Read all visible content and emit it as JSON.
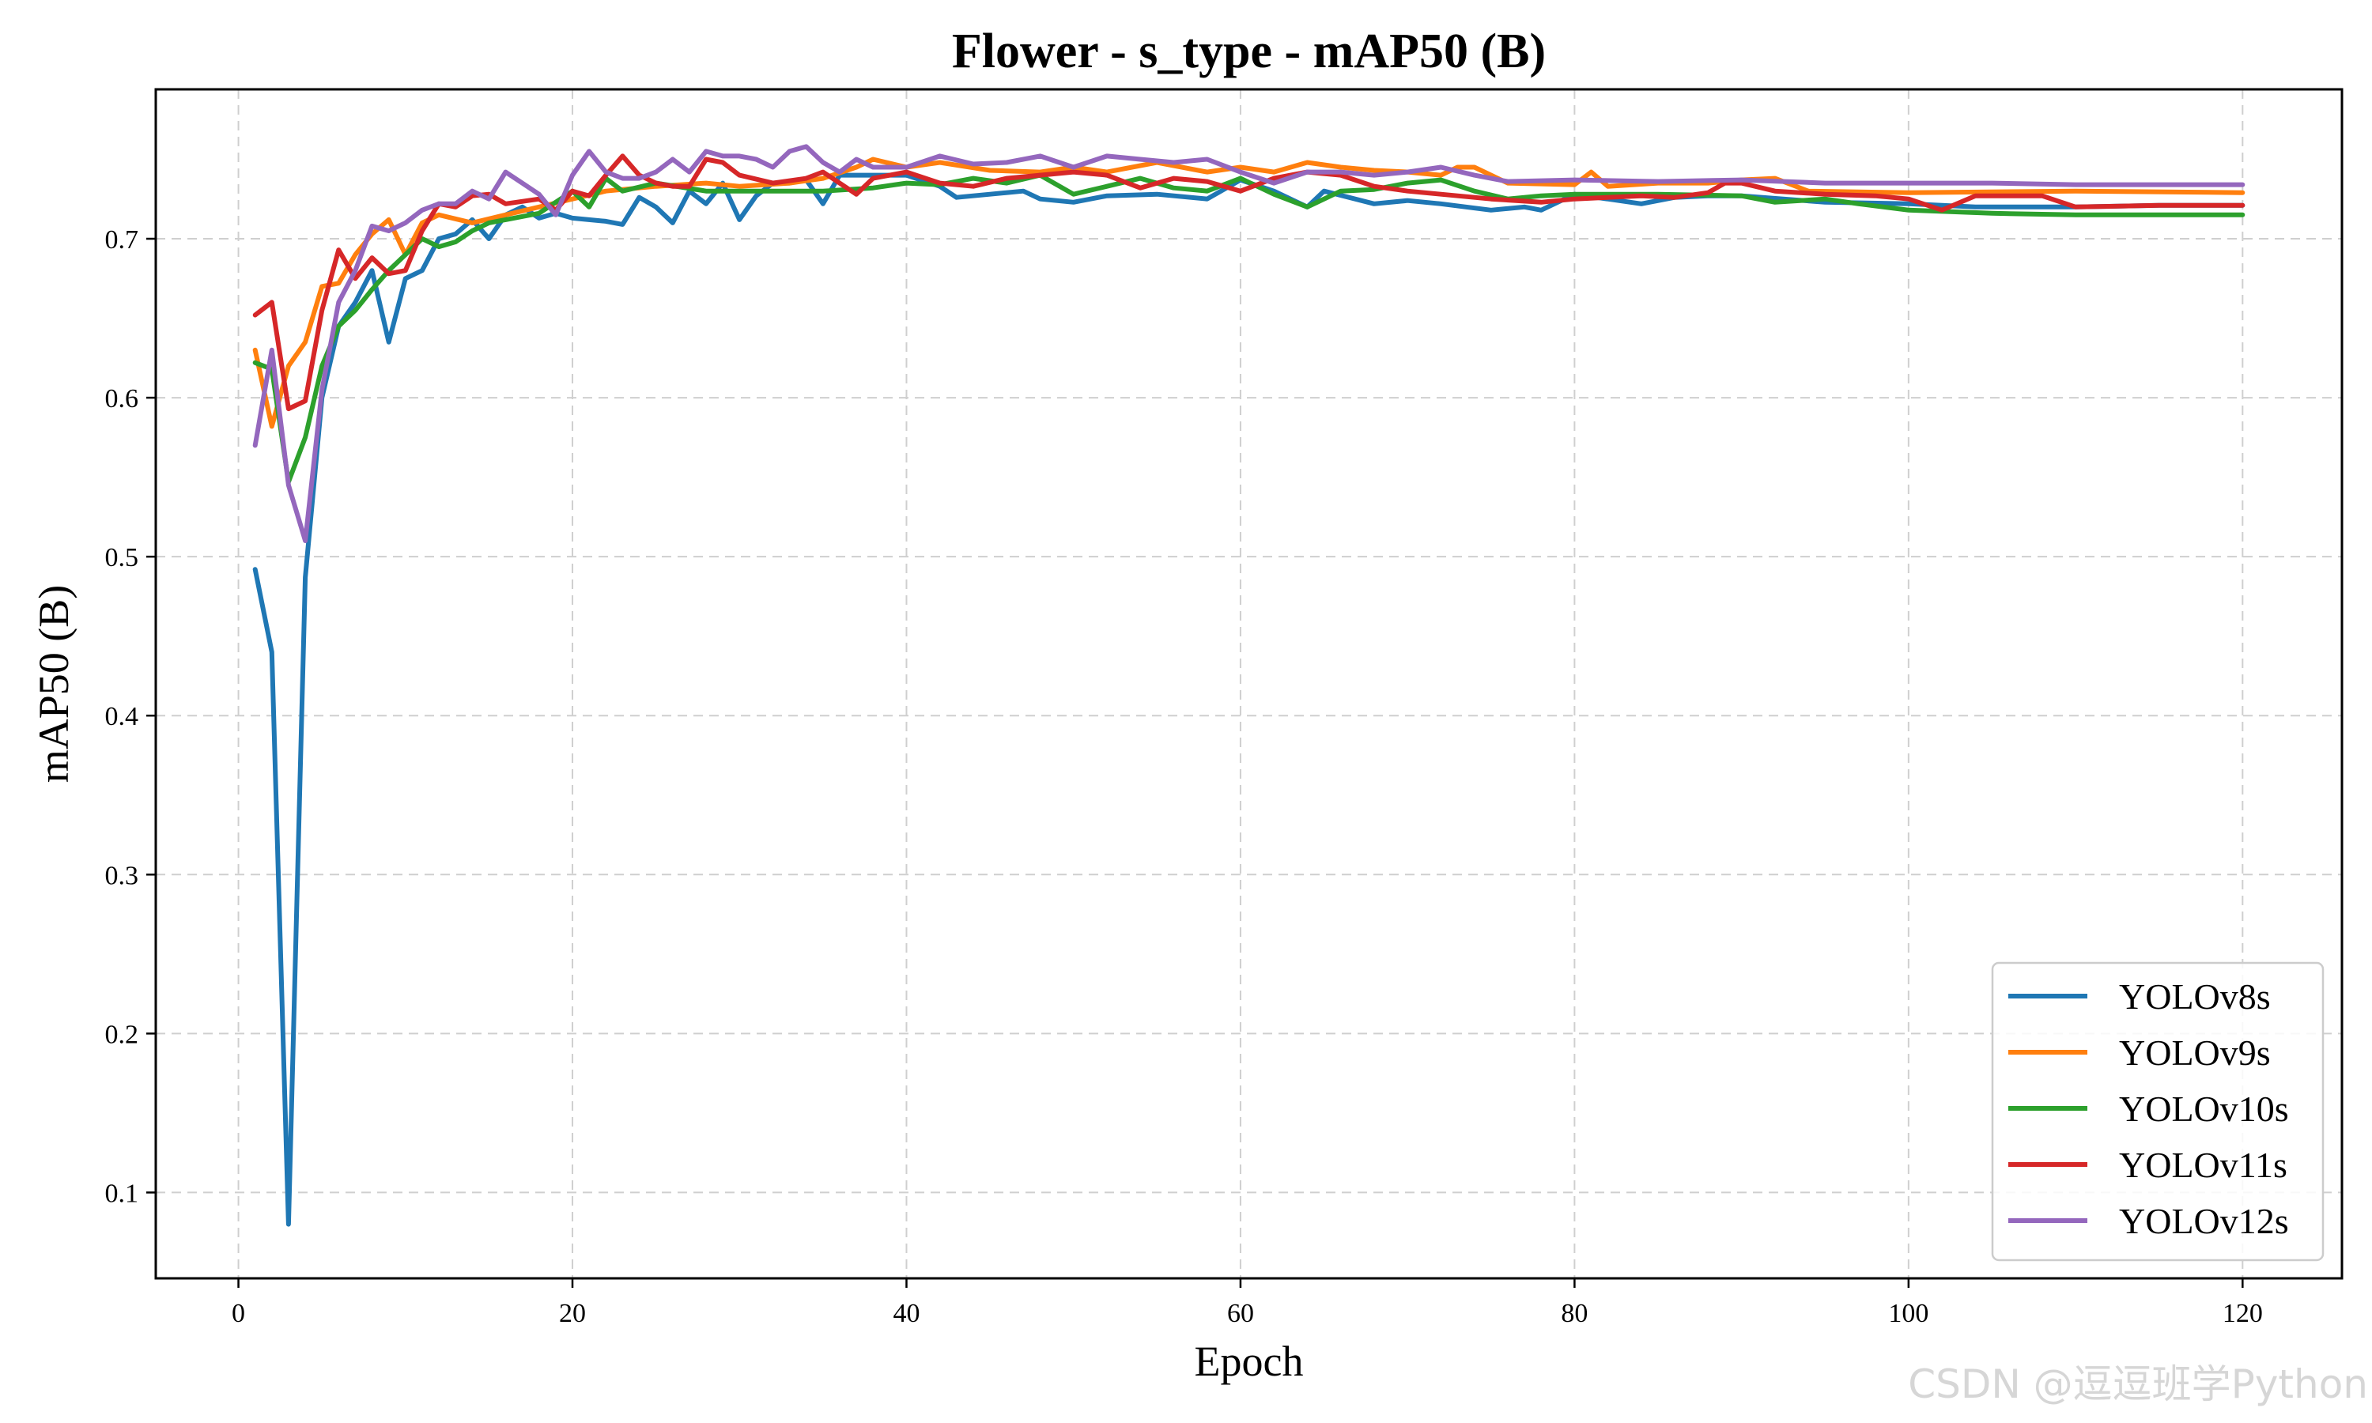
{
  "chart_data": {
    "type": "line",
    "title": "Flower - s_type - mAP50 (B)",
    "xlabel": "Epoch",
    "ylabel": "mAP50 (B)",
    "xlim": [
      -4.95,
      125.95
    ],
    "ylim": [
      0.046,
      0.794
    ],
    "xticks": [
      0,
      20,
      40,
      60,
      80,
      100,
      120
    ],
    "yticks": [
      0.1,
      0.2,
      0.3,
      0.4,
      0.5,
      0.6,
      0.7
    ],
    "grid": true,
    "legend_position": "lower-right",
    "series": [
      {
        "name": "YOLOv8s",
        "color": "#1f77b4",
        "anchors": [
          [
            1,
            0.492
          ],
          [
            2,
            0.44
          ],
          [
            3,
            0.08
          ],
          [
            4,
            0.487
          ],
          [
            5,
            0.6
          ],
          [
            6,
            0.645
          ],
          [
            7,
            0.66
          ],
          [
            8,
            0.68
          ],
          [
            9,
            0.635
          ],
          [
            10,
            0.675
          ],
          [
            11,
            0.68
          ],
          [
            12,
            0.7
          ],
          [
            13,
            0.703
          ],
          [
            14,
            0.712
          ],
          [
            15,
            0.7
          ],
          [
            16,
            0.715
          ],
          [
            17,
            0.72
          ],
          [
            18,
            0.713
          ],
          [
            19,
            0.716
          ],
          [
            20,
            0.713
          ],
          [
            22,
            0.711
          ],
          [
            23,
            0.709
          ],
          [
            24,
            0.726
          ],
          [
            25,
            0.72
          ],
          [
            26,
            0.71
          ],
          [
            27,
            0.73
          ],
          [
            28,
            0.722
          ],
          [
            29,
            0.735
          ],
          [
            30,
            0.712
          ],
          [
            31,
            0.727
          ],
          [
            32,
            0.735
          ],
          [
            33,
            0.735
          ],
          [
            34,
            0.737
          ],
          [
            35,
            0.722
          ],
          [
            36,
            0.74
          ],
          [
            40,
            0.74
          ],
          [
            42,
            0.733
          ],
          [
            43,
            0.726
          ],
          [
            45,
            0.728
          ],
          [
            47,
            0.73
          ],
          [
            48,
            0.725
          ],
          [
            50,
            0.723
          ],
          [
            52,
            0.727
          ],
          [
            55,
            0.728
          ],
          [
            58,
            0.725
          ],
          [
            60,
            0.737
          ],
          [
            62,
            0.73
          ],
          [
            64,
            0.72
          ],
          [
            65,
            0.73
          ],
          [
            68,
            0.722
          ],
          [
            70,
            0.724
          ],
          [
            72,
            0.722
          ],
          [
            75,
            0.718
          ],
          [
            77,
            0.72
          ],
          [
            78,
            0.718
          ],
          [
            80,
            0.728
          ],
          [
            84,
            0.722
          ],
          [
            86,
            0.726
          ],
          [
            88,
            0.727
          ],
          [
            90,
            0.727
          ],
          [
            95,
            0.723
          ],
          [
            100,
            0.722
          ],
          [
            104,
            0.72
          ],
          [
            110,
            0.72
          ],
          [
            115,
            0.721
          ],
          [
            120,
            0.721
          ]
        ]
      },
      {
        "name": "YOLOv9s",
        "color": "#ff7f0e",
        "anchors": [
          [
            1,
            0.63
          ],
          [
            2,
            0.582
          ],
          [
            3,
            0.62
          ],
          [
            4,
            0.635
          ],
          [
            5,
            0.67
          ],
          [
            6,
            0.672
          ],
          [
            7,
            0.69
          ],
          [
            8,
            0.703
          ],
          [
            9,
            0.712
          ],
          [
            10,
            0.69
          ],
          [
            11,
            0.71
          ],
          [
            12,
            0.715
          ],
          [
            14,
            0.71
          ],
          [
            16,
            0.715
          ],
          [
            18,
            0.72
          ],
          [
            20,
            0.725
          ],
          [
            22,
            0.73
          ],
          [
            25,
            0.733
          ],
          [
            28,
            0.735
          ],
          [
            30,
            0.733
          ],
          [
            33,
            0.735
          ],
          [
            35,
            0.738
          ],
          [
            37,
            0.745
          ],
          [
            38,
            0.75
          ],
          [
            40,
            0.745
          ],
          [
            42,
            0.748
          ],
          [
            45,
            0.743
          ],
          [
            48,
            0.742
          ],
          [
            50,
            0.745
          ],
          [
            52,
            0.742
          ],
          [
            55,
            0.748
          ],
          [
            58,
            0.742
          ],
          [
            60,
            0.745
          ],
          [
            62,
            0.742
          ],
          [
            64,
            0.748
          ],
          [
            66,
            0.745
          ],
          [
            68,
            0.743
          ],
          [
            70,
            0.742
          ],
          [
            72,
            0.74
          ],
          [
            73,
            0.745
          ],
          [
            74,
            0.745
          ],
          [
            76,
            0.735
          ],
          [
            80,
            0.734
          ],
          [
            81,
            0.742
          ],
          [
            82,
            0.733
          ],
          [
            85,
            0.735
          ],
          [
            88,
            0.735
          ],
          [
            90,
            0.737
          ],
          [
            92,
            0.738
          ],
          [
            94,
            0.73
          ],
          [
            100,
            0.729
          ],
          [
            110,
            0.73
          ],
          [
            120,
            0.729
          ]
        ]
      },
      {
        "name": "YOLOv10s",
        "color": "#2ca02c",
        "anchors": [
          [
            1,
            0.622
          ],
          [
            2,
            0.618
          ],
          [
            3,
            0.547
          ],
          [
            4,
            0.575
          ],
          [
            5,
            0.62
          ],
          [
            6,
            0.645
          ],
          [
            7,
            0.655
          ],
          [
            8,
            0.668
          ],
          [
            9,
            0.68
          ],
          [
            10,
            0.69
          ],
          [
            11,
            0.7
          ],
          [
            12,
            0.695
          ],
          [
            13,
            0.698
          ],
          [
            14,
            0.705
          ],
          [
            15,
            0.71
          ],
          [
            16,
            0.712
          ],
          [
            18,
            0.716
          ],
          [
            20,
            0.73
          ],
          [
            21,
            0.72
          ],
          [
            22,
            0.738
          ],
          [
            23,
            0.73
          ],
          [
            25,
            0.735
          ],
          [
            28,
            0.73
          ],
          [
            30,
            0.73
          ],
          [
            32,
            0.73
          ],
          [
            35,
            0.73
          ],
          [
            38,
            0.732
          ],
          [
            40,
            0.735
          ],
          [
            42,
            0.734
          ],
          [
            44,
            0.738
          ],
          [
            46,
            0.735
          ],
          [
            48,
            0.74
          ],
          [
            50,
            0.728
          ],
          [
            52,
            0.733
          ],
          [
            54,
            0.738
          ],
          [
            56,
            0.732
          ],
          [
            58,
            0.73
          ],
          [
            60,
            0.738
          ],
          [
            62,
            0.728
          ],
          [
            64,
            0.72
          ],
          [
            66,
            0.73
          ],
          [
            68,
            0.731
          ],
          [
            70,
            0.735
          ],
          [
            72,
            0.737
          ],
          [
            74,
            0.73
          ],
          [
            76,
            0.725
          ],
          [
            78,
            0.727
          ],
          [
            80,
            0.728
          ],
          [
            85,
            0.728
          ],
          [
            90,
            0.727
          ],
          [
            92,
            0.723
          ],
          [
            95,
            0.725
          ],
          [
            97,
            0.722
          ],
          [
            100,
            0.718
          ],
          [
            105,
            0.716
          ],
          [
            110,
            0.715
          ],
          [
            115,
            0.715
          ],
          [
            120,
            0.715
          ]
        ]
      },
      {
        "name": "YOLOv11s",
        "color": "#d62728",
        "anchors": [
          [
            1,
            0.652
          ],
          [
            2,
            0.66
          ],
          [
            3,
            0.593
          ],
          [
            4,
            0.598
          ],
          [
            5,
            0.655
          ],
          [
            6,
            0.693
          ],
          [
            7,
            0.675
          ],
          [
            8,
            0.688
          ],
          [
            9,
            0.678
          ],
          [
            10,
            0.68
          ],
          [
            11,
            0.705
          ],
          [
            12,
            0.722
          ],
          [
            13,
            0.72
          ],
          [
            14,
            0.727
          ],
          [
            15,
            0.728
          ],
          [
            16,
            0.722
          ],
          [
            18,
            0.725
          ],
          [
            19,
            0.718
          ],
          [
            20,
            0.73
          ],
          [
            21,
            0.727
          ],
          [
            22,
            0.74
          ],
          [
            23,
            0.752
          ],
          [
            24,
            0.74
          ],
          [
            25,
            0.735
          ],
          [
            26,
            0.733
          ],
          [
            27,
            0.733
          ],
          [
            28,
            0.75
          ],
          [
            29,
            0.748
          ],
          [
            30,
            0.74
          ],
          [
            32,
            0.735
          ],
          [
            34,
            0.738
          ],
          [
            35,
            0.742
          ],
          [
            36,
            0.735
          ],
          [
            37,
            0.728
          ],
          [
            38,
            0.738
          ],
          [
            40,
            0.742
          ],
          [
            42,
            0.735
          ],
          [
            44,
            0.733
          ],
          [
            46,
            0.738
          ],
          [
            48,
            0.74
          ],
          [
            50,
            0.742
          ],
          [
            52,
            0.74
          ],
          [
            54,
            0.732
          ],
          [
            56,
            0.738
          ],
          [
            58,
            0.736
          ],
          [
            60,
            0.73
          ],
          [
            62,
            0.738
          ],
          [
            64,
            0.742
          ],
          [
            66,
            0.74
          ],
          [
            68,
            0.733
          ],
          [
            70,
            0.73
          ],
          [
            72,
            0.728
          ],
          [
            75,
            0.725
          ],
          [
            78,
            0.723
          ],
          [
            80,
            0.725
          ],
          [
            84,
            0.727
          ],
          [
            86,
            0.726
          ],
          [
            88,
            0.729
          ],
          [
            89,
            0.735
          ],
          [
            90,
            0.735
          ],
          [
            92,
            0.73
          ],
          [
            95,
            0.728
          ],
          [
            98,
            0.727
          ],
          [
            100,
            0.725
          ],
          [
            102,
            0.718
          ],
          [
            104,
            0.727
          ],
          [
            108,
            0.727
          ],
          [
            110,
            0.72
          ],
          [
            115,
            0.721
          ],
          [
            120,
            0.721
          ]
        ]
      },
      {
        "name": "YOLOv12s",
        "color": "#9467bd",
        "anchors": [
          [
            1,
            0.57
          ],
          [
            2,
            0.63
          ],
          [
            3,
            0.545
          ],
          [
            4,
            0.51
          ],
          [
            5,
            0.605
          ],
          [
            6,
            0.66
          ],
          [
            7,
            0.68
          ],
          [
            8,
            0.708
          ],
          [
            9,
            0.705
          ],
          [
            10,
            0.71
          ],
          [
            11,
            0.718
          ],
          [
            12,
            0.722
          ],
          [
            13,
            0.722
          ],
          [
            14,
            0.73
          ],
          [
            15,
            0.725
          ],
          [
            16,
            0.742
          ],
          [
            17,
            0.735
          ],
          [
            18,
            0.728
          ],
          [
            19,
            0.715
          ],
          [
            20,
            0.74
          ],
          [
            21,
            0.755
          ],
          [
            22,
            0.742
          ],
          [
            23,
            0.738
          ],
          [
            24,
            0.738
          ],
          [
            25,
            0.742
          ],
          [
            26,
            0.75
          ],
          [
            27,
            0.742
          ],
          [
            28,
            0.755
          ],
          [
            29,
            0.752
          ],
          [
            30,
            0.752
          ],
          [
            31,
            0.75
          ],
          [
            32,
            0.745
          ],
          [
            33,
            0.755
          ],
          [
            34,
            0.758
          ],
          [
            35,
            0.748
          ],
          [
            36,
            0.742
          ],
          [
            37,
            0.75
          ],
          [
            38,
            0.745
          ],
          [
            40,
            0.745
          ],
          [
            42,
            0.752
          ],
          [
            44,
            0.747
          ],
          [
            46,
            0.748
          ],
          [
            48,
            0.752
          ],
          [
            50,
            0.745
          ],
          [
            52,
            0.752
          ],
          [
            54,
            0.75
          ],
          [
            56,
            0.748
          ],
          [
            58,
            0.75
          ],
          [
            60,
            0.742
          ],
          [
            62,
            0.735
          ],
          [
            64,
            0.742
          ],
          [
            66,
            0.742
          ],
          [
            68,
            0.74
          ],
          [
            70,
            0.742
          ],
          [
            72,
            0.745
          ],
          [
            74,
            0.74
          ],
          [
            76,
            0.736
          ],
          [
            80,
            0.737
          ],
          [
            85,
            0.736
          ],
          [
            90,
            0.737
          ],
          [
            95,
            0.735
          ],
          [
            100,
            0.735
          ],
          [
            105,
            0.735
          ],
          [
            110,
            0.734
          ],
          [
            115,
            0.734
          ],
          [
            120,
            0.734
          ]
        ]
      }
    ]
  },
  "watermark": "CSDN @逗逗班学Python"
}
